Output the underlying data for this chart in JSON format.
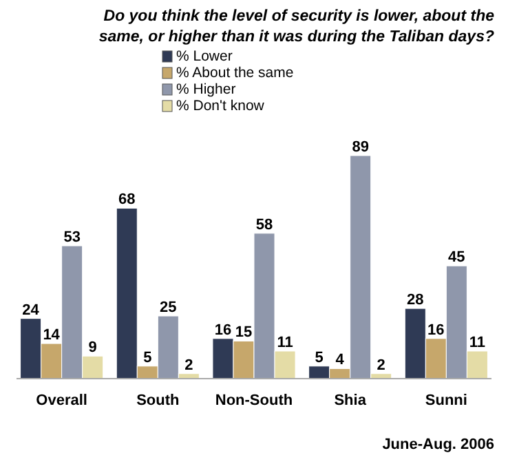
{
  "chart_data": {
    "type": "bar",
    "title": "Do you think the level of security is lower, about the same, or higher than it was during the Taliban days?",
    "categories": [
      "Overall",
      "South",
      "Non-South",
      "Shia",
      "Sunni"
    ],
    "series": [
      {
        "name": "% Lower",
        "color": "#2f3a55",
        "values": [
          24,
          68,
          16,
          5,
          28
        ]
      },
      {
        "name": "% About the same",
        "color": "#c6a76b",
        "values": [
          14,
          5,
          15,
          4,
          16
        ]
      },
      {
        "name": "% Higher",
        "color": "#8f97ab",
        "values": [
          53,
          25,
          58,
          89,
          45
        ]
      },
      {
        "name": "% Don't know",
        "color": "#e4dca6",
        "values": [
          9,
          2,
          11,
          2,
          11
        ]
      }
    ],
    "data_labels": true,
    "legend": "top",
    "annotations": [
      "June-Aug. 2006"
    ]
  }
}
